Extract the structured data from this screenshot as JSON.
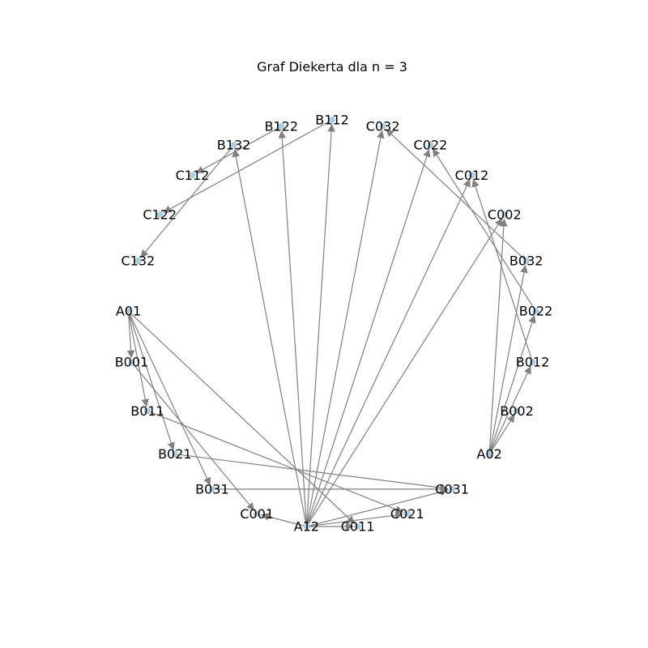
{
  "title": "Graf Diekerta dla n = 3",
  "colors": {
    "edge": "#808080",
    "node": "#a8d0e6",
    "label": "#000000"
  },
  "nodes": [
    "B112",
    "C032",
    "C022",
    "C012",
    "C002",
    "B032",
    "B022",
    "B012",
    "B002",
    "A02",
    "C031",
    "C021",
    "C011",
    "A12",
    "C001",
    "B031",
    "B021",
    "B011",
    "B001",
    "A01",
    "C132",
    "C122",
    "C112",
    "B132",
    "B122"
  ],
  "edges": [
    [
      "A12",
      "B112"
    ],
    [
      "A12",
      "B122"
    ],
    [
      "A12",
      "B132"
    ],
    [
      "A12",
      "C032"
    ],
    [
      "A12",
      "C022"
    ],
    [
      "A12",
      "C012"
    ],
    [
      "A12",
      "C002"
    ],
    [
      "A12",
      "C011"
    ],
    [
      "A12",
      "C021"
    ],
    [
      "A12",
      "C031"
    ],
    [
      "A12",
      "C001"
    ],
    [
      "A02",
      "B002"
    ],
    [
      "A02",
      "B012"
    ],
    [
      "A02",
      "B022"
    ],
    [
      "A02",
      "B032"
    ],
    [
      "A02",
      "C002"
    ],
    [
      "B032",
      "C032"
    ],
    [
      "B022",
      "C022"
    ],
    [
      "B012",
      "C012"
    ],
    [
      "A01",
      "B001"
    ],
    [
      "A01",
      "B011"
    ],
    [
      "A01",
      "B021"
    ],
    [
      "A01",
      "B031"
    ],
    [
      "A01",
      "C011"
    ],
    [
      "B001",
      "C001"
    ],
    [
      "B011",
      "C021"
    ],
    [
      "B021",
      "C031"
    ],
    [
      "B031",
      "C031"
    ],
    [
      "B112",
      "C122"
    ],
    [
      "B122",
      "C112"
    ],
    [
      "B132",
      "C132"
    ]
  ]
}
